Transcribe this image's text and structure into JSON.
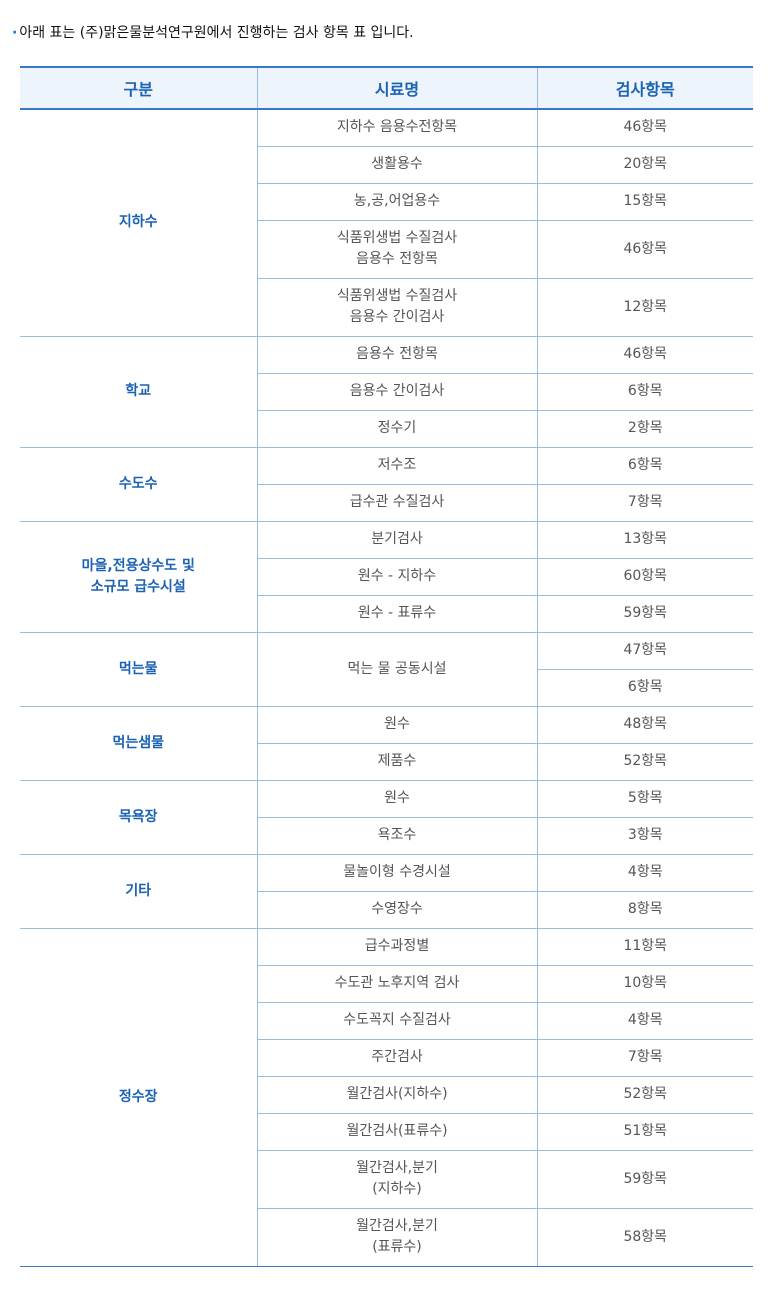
{
  "intro": {
    "bullet": "·",
    "text": "아래 표는 (주)맑은물분석연구원에서 진행하는 검사 항목 표 입니다."
  },
  "table": {
    "headers": [
      "구분",
      "시료명",
      "검사항목"
    ],
    "groups": [
      {
        "category": [
          "지하수"
        ],
        "rows": [
          {
            "sample": [
              "지하수 음용수전항목"
            ],
            "items": "46항목"
          },
          {
            "sample": [
              "생활용수"
            ],
            "items": "20항목"
          },
          {
            "sample": [
              "농,공,어업용수"
            ],
            "items": "15항목"
          },
          {
            "sample": [
              "식품위생법 수질검사",
              "음용수 전항목"
            ],
            "items": "46항목"
          },
          {
            "sample": [
              "식품위생법 수질검사",
              "음용수 간이검사"
            ],
            "items": "12항목"
          }
        ]
      },
      {
        "category": [
          "학교"
        ],
        "rows": [
          {
            "sample": [
              "음용수 전항목"
            ],
            "items": "46항목"
          },
          {
            "sample": [
              "음용수 간이검사"
            ],
            "items": "6항목"
          },
          {
            "sample": [
              "정수기"
            ],
            "items": "2항목"
          }
        ]
      },
      {
        "category": [
          "수도수"
        ],
        "rows": [
          {
            "sample": [
              "저수조"
            ],
            "items": "6항목"
          },
          {
            "sample": [
              "급수관 수질검사"
            ],
            "items": "7항목"
          }
        ]
      },
      {
        "category": [
          "마을,전용상수도 및",
          "소규모 급수시설"
        ],
        "rows": [
          {
            "sample": [
              "분기검사"
            ],
            "items": "13항목"
          },
          {
            "sample": [
              "원수 - 지하수"
            ],
            "items": "60항목"
          },
          {
            "sample": [
              "원수 - 표류수"
            ],
            "items": "59항목"
          }
        ]
      },
      {
        "category": [
          "먹는물"
        ],
        "merged_sample": [
          "먹는 물 공동시설"
        ],
        "rows": [
          {
            "sample": [
              "먹는 물 공동시설"
            ],
            "items": "47항목"
          },
          {
            "sample": [],
            "items": "6항목"
          }
        ]
      },
      {
        "category": [
          "먹는샘물"
        ],
        "rows": [
          {
            "sample": [
              "원수"
            ],
            "items": "48항목"
          },
          {
            "sample": [
              "제품수"
            ],
            "items": "52항목"
          }
        ]
      },
      {
        "category": [
          "목욕장"
        ],
        "rows": [
          {
            "sample": [
              "원수"
            ],
            "items": "5항목"
          },
          {
            "sample": [
              "욕조수"
            ],
            "items": "3항목"
          }
        ]
      },
      {
        "category": [
          "기타"
        ],
        "rows": [
          {
            "sample": [
              "물놀이형 수경시설"
            ],
            "items": "4항목"
          },
          {
            "sample": [
              "수영장수"
            ],
            "items": "8항목"
          }
        ]
      },
      {
        "category": [
          "정수장"
        ],
        "rows": [
          {
            "sample": [
              "급수과정별"
            ],
            "items": "11항목"
          },
          {
            "sample": [
              "수도관 노후지역 검사"
            ],
            "items": "10항목"
          },
          {
            "sample": [
              "수도꼭지 수질검사"
            ],
            "items": "4항목"
          },
          {
            "sample": [
              "주간검사"
            ],
            "items": "7항목"
          },
          {
            "sample": [
              "월간검사(지하수)"
            ],
            "items": "52항목"
          },
          {
            "sample": [
              "월간검사(표류수)"
            ],
            "items": "51항목"
          },
          {
            "sample": [
              "월간검사,분기",
              "(지하수)"
            ],
            "items": "59항목"
          },
          {
            "sample": [
              "월간검사,분기",
              "(표류수)"
            ],
            "items": "58항목"
          }
        ]
      }
    ]
  }
}
